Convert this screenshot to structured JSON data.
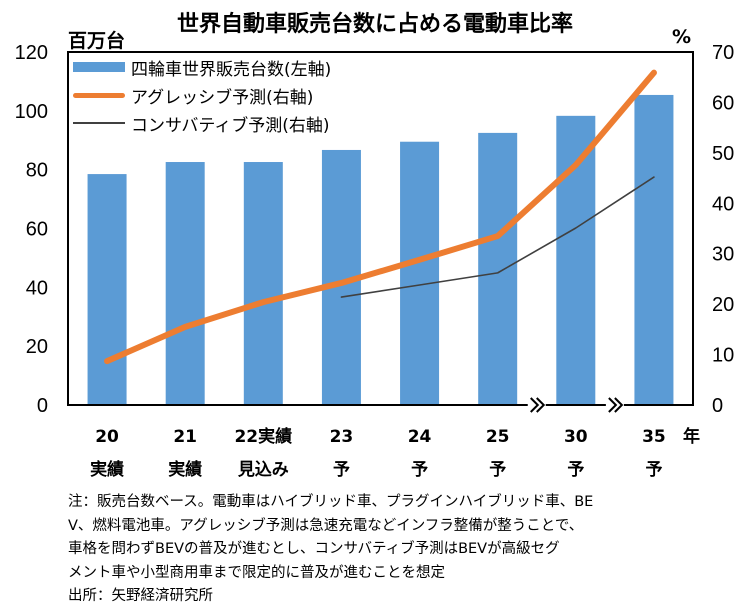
{
  "chart_data": {
    "type": "bar+line",
    "title": "世界自動車販売台数に占める電動車比率",
    "left_axis_unit": "百万台",
    "right_axis_unit": "%",
    "x_unit": "年",
    "categories": [
      {
        "top": "20",
        "bottom": "実績"
      },
      {
        "top": "21",
        "bottom": "実績"
      },
      {
        "top": "22実績",
        "bottom": "見込み"
      },
      {
        "top": "23",
        "bottom": "予"
      },
      {
        "top": "24",
        "bottom": "予"
      },
      {
        "top": "25",
        "bottom": "予"
      },
      {
        "top": "30",
        "bottom": "予"
      },
      {
        "top": "35",
        "bottom": "予"
      }
    ],
    "axis_breaks_after_index": [
      5,
      6
    ],
    "left_axis": {
      "min": 0,
      "max": 120,
      "ticks": [
        0,
        20,
        40,
        60,
        80,
        100,
        120
      ]
    },
    "right_axis": {
      "min": 0,
      "max": 70,
      "ticks": [
        0,
        10,
        20,
        30,
        40,
        50,
        60,
        70
      ]
    },
    "series": [
      {
        "name": "四輪車世界販売台数(左軸)",
        "type": "bar",
        "axis": "left",
        "color": "#5b9bd5",
        "values": [
          78.5,
          82.6,
          82.6,
          86.7,
          89.5,
          92.5,
          98.3,
          105.4
        ]
      },
      {
        "name": "アグレッシブ予測(右軸)",
        "type": "line",
        "axis": "right",
        "color": "#ed7d31",
        "values": [
          8.7,
          15.5,
          20.4,
          24.2,
          28.8,
          33.5,
          47.6,
          65.9
        ]
      },
      {
        "name": "コンサバティブ予測(右軸)",
        "type": "line",
        "axis": "right",
        "color": "#404040",
        "values": [
          null,
          null,
          null,
          21.4,
          23.8,
          26.2,
          35.1,
          45.2
        ]
      }
    ],
    "legend_position": "top-left",
    "grid": false
  },
  "notes": [
    "注：販売台数ベース。電動車はハイブリッド車、プラグインハイブリッド車、BE",
    "V、燃料電池車。アグレッシブ予測は急速充電などインフラ整備が整うことで、",
    "車格を問わずBEVの普及が進むとし、コンサバティブ予測はBEVが高級セグ",
    "メント車や小型商用車まで限定的に普及が進むことを想定",
    "出所：矢野経済研究所"
  ]
}
